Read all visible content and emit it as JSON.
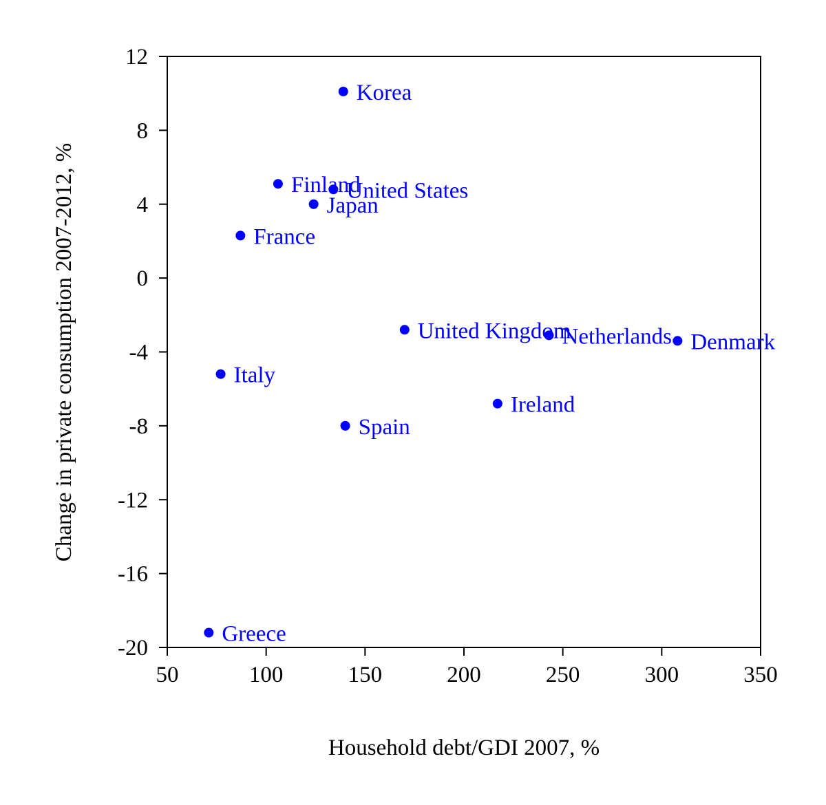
{
  "chart_data": {
    "type": "scatter",
    "title": "",
    "xlabel": "Household debt/GDI 2007, %",
    "ylabel": "Change in private consumption 2007-2012, %",
    "xlim": [
      50,
      350
    ],
    "ylim": [
      -20,
      12
    ],
    "xticks": [
      50,
      100,
      150,
      200,
      250,
      300,
      350
    ],
    "yticks": [
      -20,
      -16,
      -12,
      -8,
      -4,
      0,
      4,
      8,
      12
    ],
    "grid": false,
    "legend": "none",
    "point_color": "#0000ff",
    "points": [
      {
        "label": "Korea",
        "x": 139,
        "y": 10.1
      },
      {
        "label": "Finland",
        "x": 106,
        "y": 5.1
      },
      {
        "label": "United States",
        "x": 134,
        "y": 4.8
      },
      {
        "label": "Japan",
        "x": 124,
        "y": 4.0
      },
      {
        "label": "France",
        "x": 87,
        "y": 2.3
      },
      {
        "label": "United Kingdom",
        "x": 170,
        "y": -2.8
      },
      {
        "label": "Netherlands",
        "x": 243,
        "y": -3.1
      },
      {
        "label": "Denmark",
        "x": 308,
        "y": -3.4
      },
      {
        "label": "Italy",
        "x": 77,
        "y": -5.2
      },
      {
        "label": "Ireland",
        "x": 217,
        "y": -6.8
      },
      {
        "label": "Spain",
        "x": 140,
        "y": -8.0
      },
      {
        "label": "Greece",
        "x": 71,
        "y": -19.2
      }
    ]
  }
}
